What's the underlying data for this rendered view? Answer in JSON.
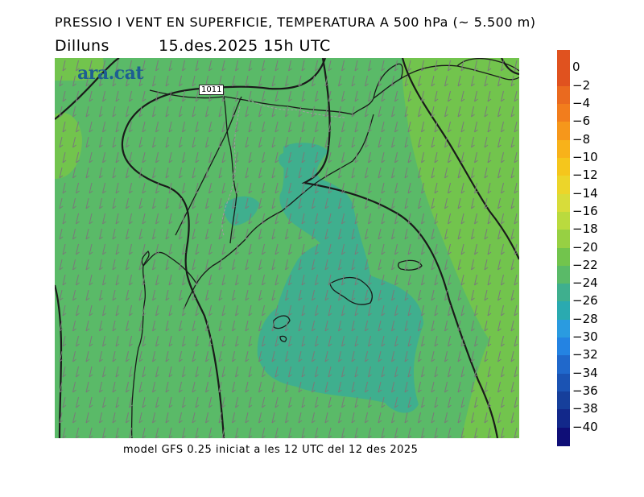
{
  "header": {
    "title": "PRESSIO I VENT EN SUPERFICIE, TEMPERATURA A 500 hPa (~ 5.500 m)",
    "day": "Dilluns",
    "datetime": "15.des.2025  15h  UTC"
  },
  "footer": "model GFS 0.25 iniciat a les 12 UTC del 12 des 2025",
  "logo": "ara.cat",
  "isobar_label": "1011",
  "legend": {
    "labels": [
      "0",
      "−2",
      "−4",
      "−6",
      "−8",
      "−10",
      "−12",
      "−14",
      "−16",
      "−18",
      "−20",
      "−22",
      "−24",
      "−26",
      "−28",
      "−30",
      "−32",
      "−34",
      "−36",
      "−38",
      "−40"
    ],
    "colors": [
      "#e0521f",
      "#ea6a1f",
      "#f27d1d",
      "#f6971b",
      "#f8b21a",
      "#f5c61c",
      "#ecd52a",
      "#d8dc3a",
      "#bada3e",
      "#97d043",
      "#72c44d",
      "#5aba68",
      "#3faf8e",
      "#2aaab0",
      "#2a9be0",
      "#2483e2",
      "#2068cb",
      "#1b53b3",
      "#163f9b",
      "#12288a",
      "#0f0e77"
    ]
  }
}
